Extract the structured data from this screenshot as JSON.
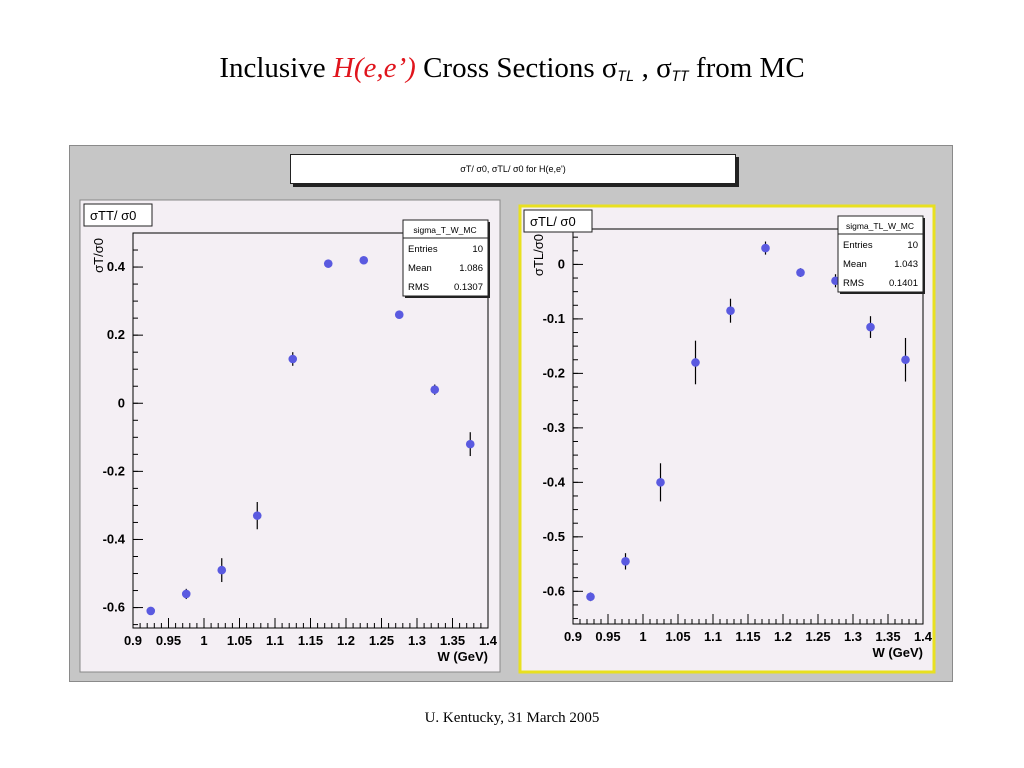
{
  "slide": {
    "title_prefix": "Inclusive ",
    "title_red": "H(e,e’)",
    "title_middle": " Cross Sections σ",
    "sub_tl": "TL",
    "title_comma": " , σ",
    "sub_tt": "TT",
    "title_suffix": "  from MC",
    "footer": "U. Kentucky, 31 March 2005"
  },
  "canvas_title": "σT/ σ0, σTL/ σ0 for H(e,e')",
  "colors": {
    "marker": "#5a5ae0",
    "canvas_bg": "#c6c6c6",
    "frame_bg": "#f4eff4",
    "selected_pad_border": "#e8e020"
  },
  "chart_data": [
    {
      "type": "scatter",
      "pad_label": "σTT/ σ0",
      "ylabel": "σT/σ0",
      "xlabel": "W (GeV)",
      "xlim": [
        0.9,
        1.4
      ],
      "ylim": [
        -0.66,
        0.5
      ],
      "xticks": [
        "0.9",
        "0.95",
        "1",
        "1.05",
        "1.1",
        "1.15",
        "1.2",
        "1.25",
        "1.3",
        "1.35",
        "1.4"
      ],
      "yticks": [
        -0.6,
        -0.4,
        -0.2,
        0,
        0.2,
        0.4
      ],
      "ytick_labels": [
        "-0.6",
        "-0.4",
        "-0.2",
        "0",
        "0.2",
        "0.4"
      ],
      "stats": {
        "name": "sigma_T_W_MC",
        "rows": [
          [
            "Entries",
            "10"
          ],
          [
            "Mean",
            "1.086"
          ],
          [
            "RMS",
            "0.1307"
          ]
        ]
      },
      "x": [
        0.925,
        0.975,
        1.025,
        1.075,
        1.125,
        1.175,
        1.225,
        1.275,
        1.325,
        1.375
      ],
      "y": [
        -0.61,
        -0.56,
        -0.49,
        -0.33,
        0.13,
        0.41,
        0.42,
        0.26,
        0.04,
        -0.12
      ],
      "yerr": [
        0.01,
        0.015,
        0.035,
        0.04,
        0.02,
        0.01,
        0.01,
        0.01,
        0.015,
        0.035
      ]
    },
    {
      "type": "scatter",
      "pad_label": "σTL/ σ0",
      "ylabel": "σTL/σ0",
      "xlabel": "W (GeV)",
      "xlim": [
        0.9,
        1.4
      ],
      "ylim": [
        -0.66,
        0.065
      ],
      "xticks": [
        "0.9",
        "0.95",
        "1",
        "1.05",
        "1.1",
        "1.15",
        "1.2",
        "1.25",
        "1.3",
        "1.35",
        "1.4"
      ],
      "yticks": [
        -0.6,
        -0.5,
        -0.4,
        -0.3,
        -0.2,
        -0.1,
        0
      ],
      "ytick_labels": [
        "-0.6",
        "-0.5",
        "-0.4",
        "-0.3",
        "-0.2",
        "-0.1",
        "0"
      ],
      "stats": {
        "name": "sigma_TL_W_MC",
        "rows": [
          [
            "Entries",
            "10"
          ],
          [
            "Mean",
            "1.043"
          ],
          [
            "RMS",
            "0.1401"
          ]
        ]
      },
      "x": [
        0.925,
        0.975,
        1.025,
        1.075,
        1.125,
        1.175,
        1.225,
        1.275,
        1.325,
        1.375
      ],
      "y": [
        -0.61,
        -0.545,
        -0.4,
        -0.18,
        -0.085,
        0.03,
        -0.015,
        -0.03,
        -0.115,
        -0.175
      ],
      "yerr": [
        0.008,
        0.015,
        0.035,
        0.04,
        0.022,
        0.012,
        0.008,
        0.012,
        0.02,
        0.04
      ]
    }
  ]
}
